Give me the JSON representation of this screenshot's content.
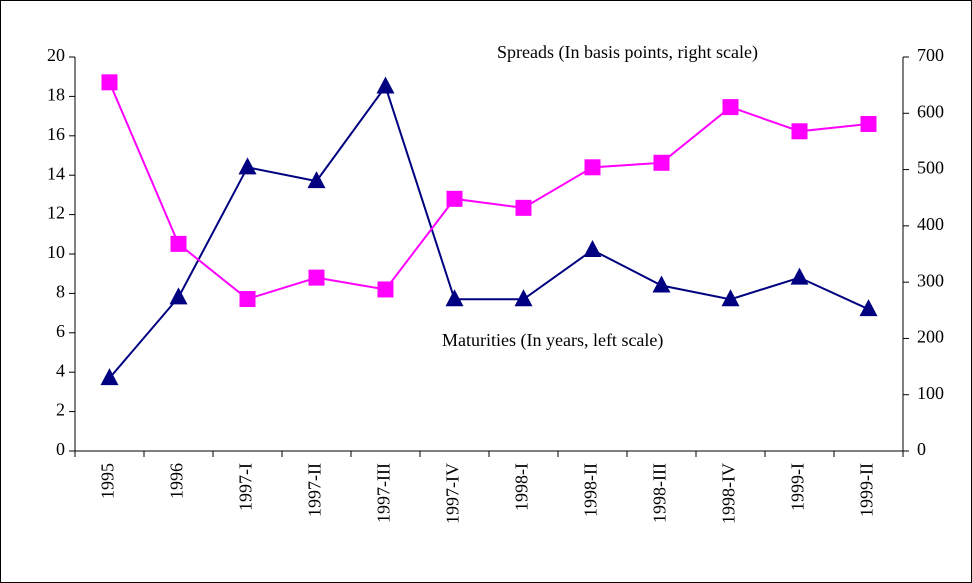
{
  "chart_data": {
    "type": "line",
    "categories": [
      "1995",
      "1996",
      "1997-I",
      "1997-II",
      "1997-III",
      "1997-IV",
      "1998-I",
      "1998-II",
      "1998-III",
      "1998-IV",
      "1999-I",
      "1999-II"
    ],
    "series": [
      {
        "name": "Maturities (In years, left scale)",
        "color": "#000080",
        "marker": "triangle",
        "values": [
          3.7,
          7.8,
          14.4,
          13.7,
          18.5,
          7.7,
          7.7,
          10.2,
          8.4,
          7.7,
          8.8,
          7.2
        ]
      },
      {
        "name": "Spreads (In basis points, right scale)",
        "color": "#ff00ff",
        "marker": "square",
        "axis": "y2",
        "values": [
          655,
          368,
          270,
          308,
          287,
          448,
          432,
          504,
          512,
          611,
          568,
          581
        ]
      }
    ],
    "ylim": [
      0,
      20
    ],
    "yticks": [
      0,
      2,
      4,
      6,
      8,
      10,
      12,
      14,
      16,
      18,
      20
    ],
    "y2lim": [
      0,
      700
    ],
    "y2ticks": [
      0,
      100,
      200,
      300,
      400,
      500,
      600,
      700
    ],
    "grid": false
  }
}
